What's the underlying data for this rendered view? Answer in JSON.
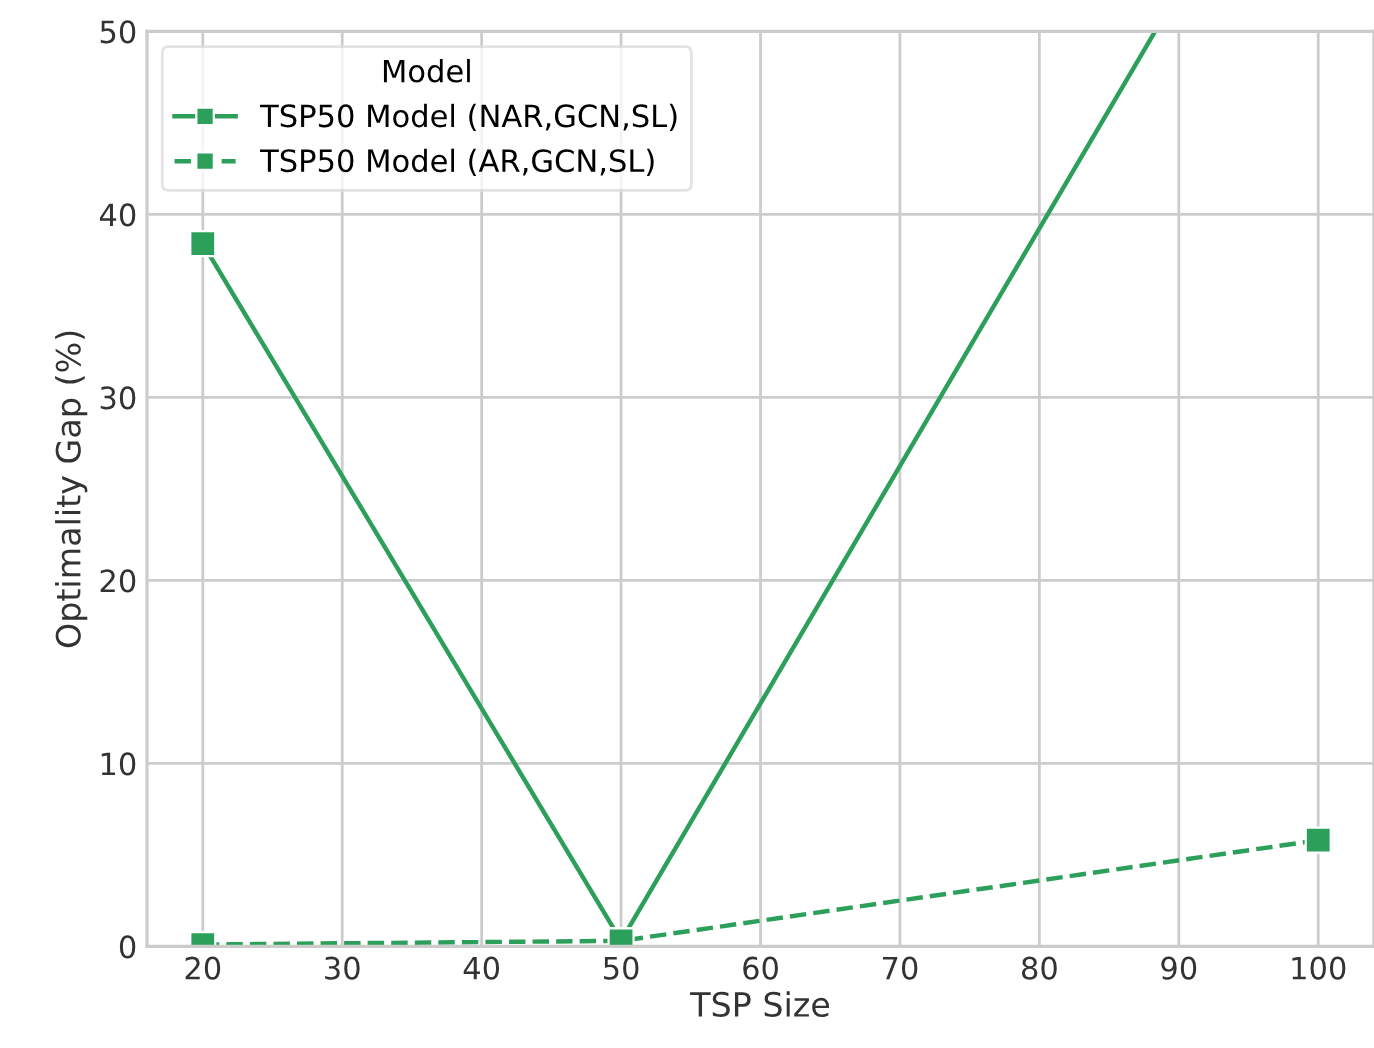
{
  "chart_data": {
    "type": "line",
    "xlabel": "TSP Size",
    "ylabel": "Optimality Gap (%)",
    "legend_title": "Model",
    "x": [
      20,
      50,
      100
    ],
    "series": [
      {
        "name": "TSP50 Model (NAR,GCN,SL)",
        "color": "#2ca05a",
        "x": [
          20,
          50,
          88.3
        ],
        "values": [
          38.4,
          0.3,
          50
        ],
        "line_style": "solid"
      },
      {
        "name": "TSP50 Model (AR,GCN,SL)",
        "color": "#2ca05a",
        "values": [
          0.1,
          0.3,
          5.8
        ],
        "line_style": "dashed"
      }
    ],
    "xlim": [
      16,
      104
    ],
    "xticks": [
      20,
      30,
      40,
      50,
      60,
      70,
      80,
      90,
      100
    ],
    "ylim": [
      0,
      50
    ],
    "yticks": [
      0,
      10,
      20,
      30,
      40,
      50
    ],
    "grid": true,
    "legend": "top left",
    "marker": "square"
  }
}
